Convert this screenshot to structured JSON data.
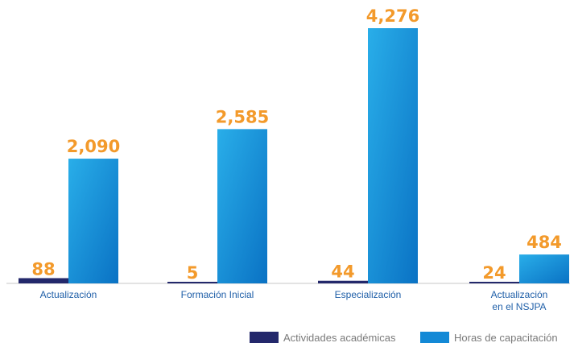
{
  "chart_data": {
    "type": "bar",
    "categories": [
      "Actualización",
      "Formación Inicial",
      "Especialización",
      "Actualización\nen el NSJPA"
    ],
    "series": [
      {
        "name": "Actividades académicas",
        "values": [
          88,
          5,
          44,
          24
        ],
        "labels": [
          "88",
          "5",
          "44",
          "24"
        ],
        "color": "#23286b"
      },
      {
        "name": "Horas de capacitación",
        "values": [
          2090,
          2585,
          4276,
          484
        ],
        "labels": [
          "2,090",
          "2,585",
          "4,276",
          "484"
        ],
        "color": "#1389d6"
      }
    ],
    "ylim": [
      0,
      4276
    ],
    "grid": false,
    "legend_position": "bottom-right",
    "label_color": "#f39a2b",
    "category_label_color": "#1f5fa8"
  }
}
